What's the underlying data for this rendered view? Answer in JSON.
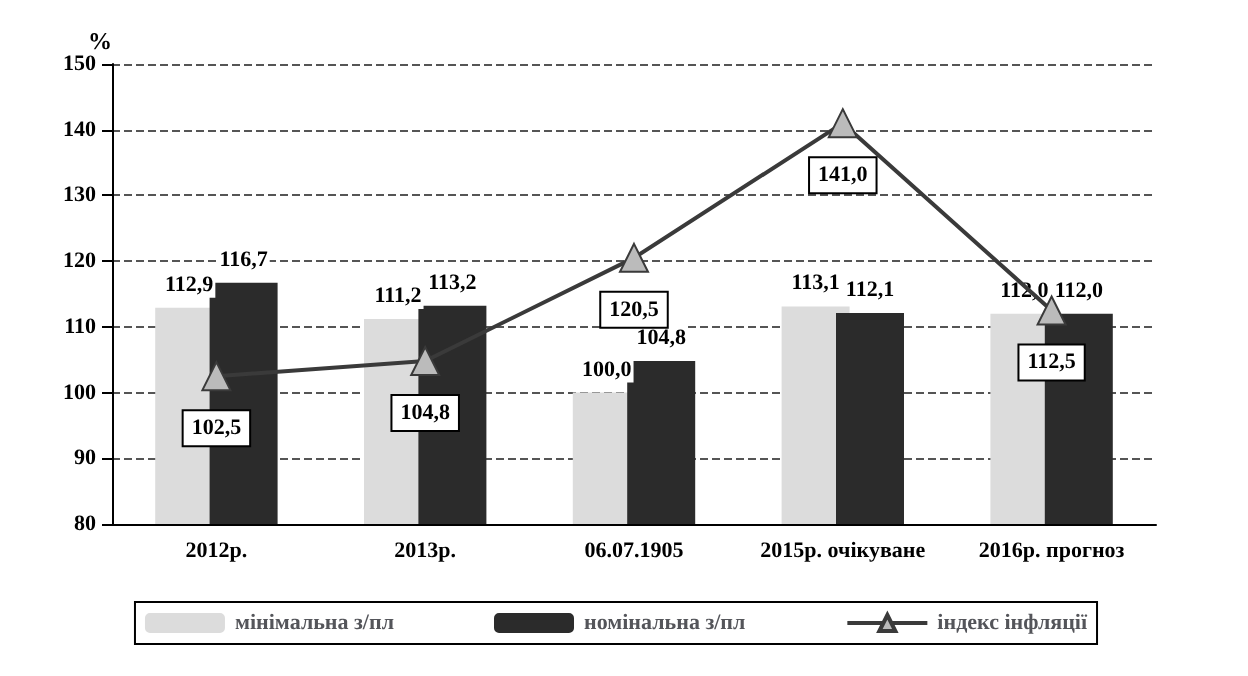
{
  "chart_data": {
    "type": "bar",
    "ylabel": "%",
    "categories": [
      "2012р.",
      "2013р.",
      "06.07.1905",
      "2015р. очікуване",
      "2016р. прогноз"
    ],
    "series": [
      {
        "name": "мінімальна з/пл",
        "color": "#dcdcdc",
        "values": [
          112.9,
          111.2,
          100.0,
          113.1,
          112.0
        ],
        "value_labels": [
          "112,9",
          "111,2",
          "100,0",
          "113,1",
          "112,0"
        ]
      },
      {
        "name": "номінальна з/пл",
        "color": "#2b2b2b",
        "values": [
          116.7,
          113.2,
          104.8,
          112.1,
          112.0
        ],
        "value_labels": [
          "116,7",
          "113,2",
          "104,8",
          "112,1",
          "112,0"
        ]
      },
      {
        "name": "індекс інфляції",
        "type": "line",
        "color": "#3a3a3a",
        "values": [
          102.5,
          104.8,
          120.5,
          141.0,
          112.5
        ],
        "value_labels": [
          "102,5",
          "104,8",
          "120,5",
          "141,0",
          "112,5"
        ]
      }
    ],
    "ylim": [
      80,
      150
    ],
    "yticks": [
      80,
      90,
      100,
      110,
      120,
      130,
      140,
      150
    ],
    "grid": "y",
    "legend": "bottom",
    "marker": "triangle"
  }
}
